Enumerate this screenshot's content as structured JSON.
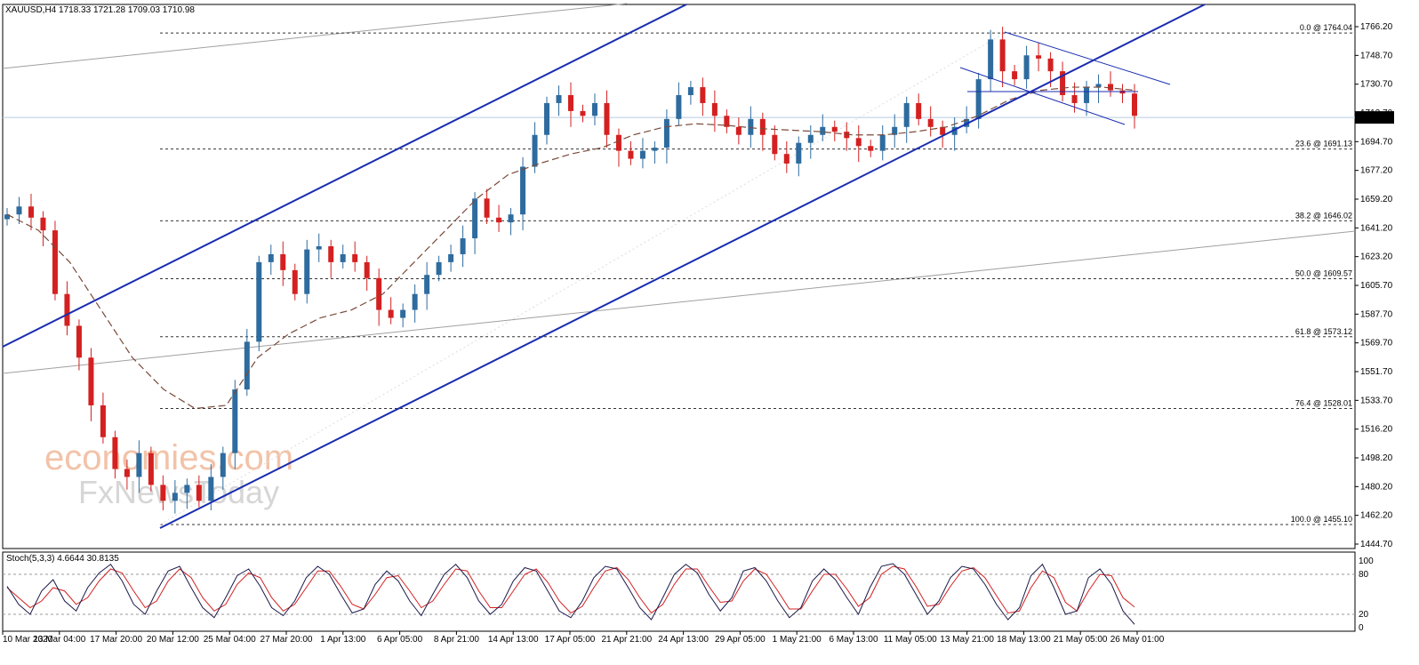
{
  "chart_data": {
    "type": "candlestick",
    "symbol_header": "XAUUSD,H4  1718.33 1721.28 1709.03 1710.98",
    "last_price_label": "1710.98",
    "last_price": 1710.98,
    "ylim": [
      1440,
      1782
    ],
    "yticks": [
      "1766.20",
      "1748.70",
      "1730.70",
      "1712.70",
      "1694.70",
      "1677.20",
      "1659.20",
      "1641.20",
      "1623.20",
      "1605.70",
      "1587.70",
      "1569.70",
      "1551.70",
      "1533.70",
      "1516.20",
      "1498.20",
      "1480.20",
      "1462.20",
      "1444.70"
    ],
    "xticks": [
      "10 Mar 2020",
      "13 Mar 04:00",
      "17 Mar 20:00",
      "20 Mar 12:00",
      "25 Mar 04:00",
      "27 Mar 20:00",
      "1 Apr 13:00",
      "6 Apr 05:00",
      "8 Apr 21:00",
      "14 Apr 13:00",
      "17 Apr 05:00",
      "21 Apr 21:00",
      "24 Apr 13:00",
      "29 Apr 05:00",
      "1 May 21:00",
      "6 May 13:00",
      "11 May 05:00",
      "13 May 21:00",
      "18 May 13:00",
      "21 May 05:00",
      "26 May 01:00"
    ],
    "fibonacci": [
      {
        "label": "0.0 @ 1764.04",
        "level": 1764.04
      },
      {
        "label": "23.6 @ 1691.13",
        "level": 1691.13
      },
      {
        "label": "38.2 @ 1646.02",
        "level": 1646.02
      },
      {
        "label": "50.0 @ 1609.57",
        "level": 1609.57
      },
      {
        "label": "61.8 @ 1573.12",
        "level": 1573.12
      },
      {
        "label": "76.4 @ 1528.01",
        "level": 1528.01
      },
      {
        "label": "100.0 @ 1455.10",
        "level": 1455.1
      }
    ],
    "close_path": [
      1650,
      1655,
      1648,
      1640,
      1600,
      1580,
      1560,
      1530,
      1510,
      1490,
      1485,
      1500,
      1480,
      1470,
      1475,
      1480,
      1470,
      1485,
      1500,
      1540,
      1570,
      1620,
      1625,
      1615,
      1600,
      1628,
      1630,
      1620,
      1625,
      1620,
      1610,
      1590,
      1585,
      1590,
      1600,
      1612,
      1620,
      1625,
      1635,
      1660,
      1648,
      1645,
      1650,
      1680,
      1700,
      1720,
      1725,
      1715,
      1712,
      1720,
      1700,
      1690,
      1685,
      1690,
      1692,
      1710,
      1725,
      1730,
      1720,
      1712,
      1705,
      1700,
      1710,
      1700,
      1688,
      1682,
      1695,
      1700,
      1705,
      1702,
      1698,
      1693,
      1690,
      1700,
      1705,
      1720,
      1710,
      1705,
      1700,
      1705,
      1710,
      1735,
      1760,
      1740,
      1735,
      1750,
      1748,
      1740,
      1725,
      1720,
      1730,
      1732,
      1728,
      1726,
      1712
    ],
    "moving_average_path": [
      1650,
      1640,
      1620,
      1590,
      1560,
      1540,
      1528,
      1530,
      1560,
      1575,
      1585,
      1590,
      1600,
      1620,
      1640,
      1660,
      1675,
      1682,
      1688,
      1692,
      1700,
      1705,
      1707,
      1706,
      1704,
      1703,
      1702,
      1700,
      1700,
      1702,
      1705,
      1712,
      1722,
      1728,
      1730,
      1730,
      1728
    ],
    "stochastic": {
      "label": "Stoch(5,3,3) 4.6644 30.8135",
      "ylim": [
        0,
        100
      ],
      "levels": [
        20,
        80
      ],
      "tick_labels": [
        "100",
        "80",
        "20",
        "0"
      ],
      "main": [
        62,
        35,
        20,
        55,
        72,
        40,
        25,
        60,
        82,
        95,
        70,
        35,
        20,
        55,
        85,
        92,
        60,
        30,
        15,
        45,
        78,
        88,
        62,
        30,
        18,
        40,
        75,
        92,
        80,
        50,
        22,
        28,
        65,
        85,
        70,
        40,
        18,
        50,
        80,
        95,
        75,
        40,
        20,
        35,
        70,
        90,
        85,
        55,
        25,
        15,
        40,
        75,
        92,
        88,
        60,
        30,
        12,
        45,
        80,
        95,
        82,
        50,
        25,
        45,
        85,
        90,
        70,
        40,
        15,
        30,
        70,
        88,
        72,
        45,
        20,
        60,
        92,
        96,
        80,
        50,
        20,
        40,
        75,
        92,
        88,
        65,
        35,
        12,
        30,
        78,
        95,
        60,
        20,
        25,
        75,
        88,
        65,
        25,
        5
      ],
      "signal": [
        60,
        45,
        30,
        40,
        60,
        55,
        35,
        45,
        70,
        88,
        82,
        55,
        30,
        40,
        70,
        88,
        75,
        45,
        25,
        35,
        65,
        82,
        75,
        45,
        25,
        35,
        60,
        85,
        85,
        62,
        35,
        28,
        50,
        75,
        78,
        55,
        30,
        40,
        65,
        88,
        85,
        55,
        30,
        30,
        55,
        80,
        88,
        68,
        40,
        22,
        32,
        60,
        85,
        90,
        72,
        45,
        22,
        35,
        65,
        88,
        88,
        62,
        38,
        40,
        70,
        88,
        80,
        55,
        28,
        28,
        55,
        80,
        80,
        58,
        32,
        45,
        80,
        92,
        88,
        62,
        32,
        35,
        62,
        85,
        90,
        75,
        48,
        22,
        25,
        60,
        85,
        75,
        38,
        25,
        55,
        80,
        78,
        45,
        31
      ]
    },
    "watermark_line1": "economies.com",
    "watermark_line2": "FxNewsToday"
  }
}
